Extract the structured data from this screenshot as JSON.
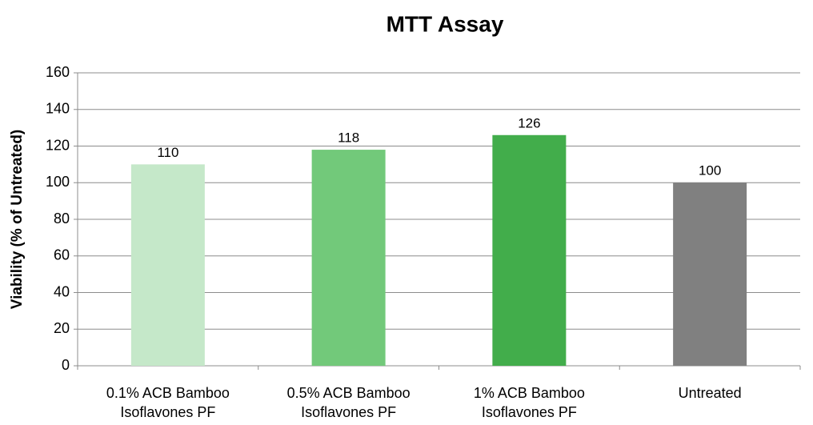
{
  "chart_data": {
    "type": "bar",
    "title": "MTT Assay",
    "y_label": "Viability (% of Untreated)",
    "categories": [
      "0.1% ACB Bamboo Isoflavones PF",
      "0.5% ACB Bamboo Isoflavones PF",
      "1% ACB Bamboo Isoflavones PF",
      "Untreated"
    ],
    "values": [
      110,
      118,
      126,
      100
    ],
    "colors": [
      "#c5e8c9",
      "#72c97a",
      "#42ad4b",
      "#808080"
    ],
    "ylim": [
      0,
      160
    ],
    "yticks": [
      0,
      20,
      40,
      60,
      80,
      100,
      120,
      140,
      160
    ],
    "grid": true
  }
}
